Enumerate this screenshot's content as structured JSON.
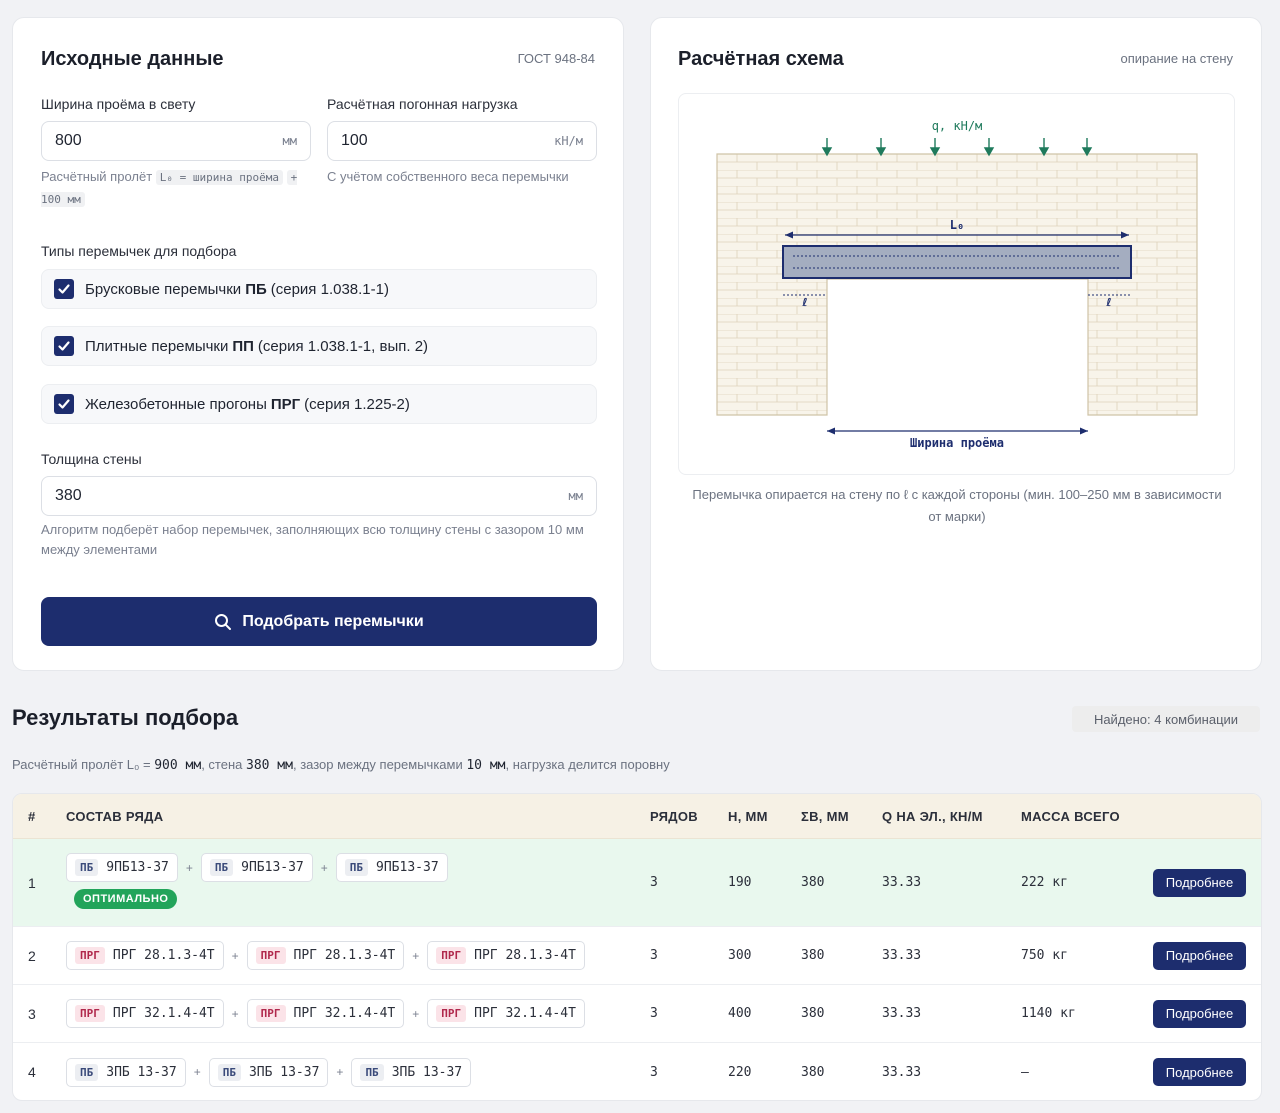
{
  "input": {
    "title": "Исходные данные",
    "standard": "ГОСТ 948-84",
    "opening": {
      "label": "Ширина проёма в свету",
      "value": "800",
      "unit": "мм"
    },
    "load": {
      "label": "Расчётная погонная нагрузка",
      "value": "100",
      "unit": "кН/м",
      "hint": "С учётом собственного веса перемычки"
    },
    "span_hint": {
      "text": "Расчётный пролёт",
      "code1": "L₀ = ширина проёма",
      "code2": "+ 100 мм"
    },
    "types_label": "Типы перемычек для подбора",
    "types": [
      {
        "prefix": "Брусковые перемычки",
        "code": "ПБ",
        "series": "(серия 1.038.1-1)",
        "checked": true
      },
      {
        "prefix": "Плитные перемычки",
        "code": "ПП",
        "series": "(серия 1.038.1-1, вып. 2)",
        "checked": true
      },
      {
        "prefix": "Железобетонные прогоны",
        "code": "ПРГ",
        "series": "(серия 1.225-2)",
        "checked": true
      }
    ],
    "wall": {
      "label": "Толщина стены",
      "value": "380",
      "unit": "мм",
      "hint": "Алгоритм подберёт набор перемычек, заполняющих всю толщину стены с зазором 10 мм между элементами"
    },
    "submit_label": "Подобрать перемычки"
  },
  "scheme": {
    "title": "Расчётная схема",
    "tag": "опирание на стену",
    "load_label": "q, кН/м",
    "span_label": "L₀",
    "support_label": "ℓ",
    "width_label": "Ширина проёма",
    "caption": "Перемычка опирается на стену по ℓ с каждой стороны (мин. 100–250 мм в зависимости от марки)"
  },
  "results": {
    "title": "Результаты подбора",
    "found": "Найдено: 4 комбинации",
    "note": {
      "t1": "Расчётный пролёт L₀ =",
      "v1": "900 мм",
      "t2": ", стена",
      "v2": "380 мм",
      "t3": ", зазор между перемычками",
      "v3": "10 мм",
      "t4": ", нагрузка делится поровну"
    },
    "columns": [
      "#",
      "СОСТАВ РЯДА",
      "РЯДОВ",
      "H, ММ",
      "ΣB, ММ",
      "Q НА ЭЛ., КН/М",
      "МАССА ВСЕГО"
    ],
    "optimal_label": "ОПТИМАЛЬНО",
    "more_label": "Подробнее",
    "rows": [
      {
        "num": "1",
        "tag": "ПБ",
        "mark": "9ПБ13-37",
        "rows": "3",
        "h": "190",
        "b": "380",
        "q": "33.33",
        "mass": "222 кг"
      },
      {
        "num": "2",
        "tag": "ПРГ",
        "mark": "ПРГ 28.1.3-4Т",
        "rows": "3",
        "h": "300",
        "b": "380",
        "q": "33.33",
        "mass": "750 кг"
      },
      {
        "num": "3",
        "tag": "ПРГ",
        "mark": "ПРГ 32.1.4-4Т",
        "rows": "3",
        "h": "400",
        "b": "380",
        "q": "33.33",
        "mass": "1140 кг"
      },
      {
        "num": "4",
        "tag": "ПБ",
        "mark": "3ПБ 13-37",
        "rows": "3",
        "h": "220",
        "b": "380",
        "q": "33.33",
        "mass": "—"
      }
    ]
  }
}
